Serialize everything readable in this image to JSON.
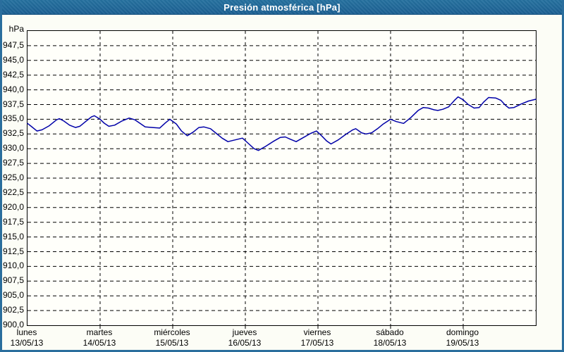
{
  "window": {
    "title": "Presión atmosférica [hPa]"
  },
  "colors": {
    "titlebar_bg": "#1F6699",
    "titlebar_text": "#FFFFFF",
    "window_border": "#2A6E9D",
    "content_bg": "#FCFDF6",
    "plot_bg": "#FFFFFA",
    "grid": "#000000",
    "line": "#0000A8"
  },
  "chart_data": {
    "type": "line",
    "title": "Presión atmosférica [hPa]",
    "ylabel": "hPa",
    "unit": "hPa",
    "ylim": [
      900,
      950
    ],
    "ytick_step": 2.5,
    "ytick_labels": [
      "947,5",
      "945,0",
      "942,5",
      "940,0",
      "937,5",
      "935,0",
      "932,5",
      "930,0",
      "927,5",
      "925,0",
      "922,5",
      "920,0",
      "917,5",
      "915,0",
      "912,5",
      "910,0",
      "907,5",
      "905,0",
      "902,5",
      "900,0"
    ],
    "xlim_days": [
      0,
      7
    ],
    "grid": "dashed",
    "legend": "none",
    "categories": [
      {
        "day": "lunes",
        "date": "13/05/13"
      },
      {
        "day": "martes",
        "date": "14/05/13"
      },
      {
        "day": "miércoles",
        "date": "15/05/13"
      },
      {
        "day": "jueves",
        "date": "16/05/13"
      },
      {
        "day": "viernes",
        "date": "17/05/13"
      },
      {
        "day": "sábado",
        "date": "18/05/13"
      },
      {
        "day": "domingo",
        "date": "19/05/13"
      }
    ],
    "series": [
      {
        "name": "Presión atmosférica [hPa]",
        "x_unit": "days_from_2013-05-13",
        "points": [
          [
            0.0,
            934.3
          ],
          [
            0.05,
            933.8
          ],
          [
            0.13,
            933.0
          ],
          [
            0.2,
            933.2
          ],
          [
            0.3,
            933.9
          ],
          [
            0.4,
            934.9
          ],
          [
            0.44,
            935.1
          ],
          [
            0.5,
            934.7
          ],
          [
            0.58,
            934.0
          ],
          [
            0.66,
            933.6
          ],
          [
            0.72,
            933.8
          ],
          [
            0.8,
            934.6
          ],
          [
            0.88,
            935.4
          ],
          [
            0.92,
            935.6
          ],
          [
            1.0,
            935.0
          ],
          [
            1.06,
            934.3
          ],
          [
            1.12,
            933.8
          ],
          [
            1.2,
            934.0
          ],
          [
            1.3,
            934.7
          ],
          [
            1.4,
            935.2
          ],
          [
            1.48,
            934.9
          ],
          [
            1.55,
            934.3
          ],
          [
            1.62,
            933.7
          ],
          [
            1.72,
            933.6
          ],
          [
            1.82,
            933.5
          ],
          [
            1.9,
            934.4
          ],
          [
            1.96,
            935.0
          ],
          [
            2.05,
            934.2
          ],
          [
            2.12,
            933.0
          ],
          [
            2.2,
            932.2
          ],
          [
            2.28,
            932.8
          ],
          [
            2.36,
            933.6
          ],
          [
            2.43,
            933.7
          ],
          [
            2.52,
            933.4
          ],
          [
            2.6,
            932.6
          ],
          [
            2.68,
            931.8
          ],
          [
            2.76,
            931.2
          ],
          [
            2.86,
            931.5
          ],
          [
            2.96,
            931.8
          ],
          [
            3.05,
            930.8
          ],
          [
            3.12,
            930.0
          ],
          [
            3.18,
            929.7
          ],
          [
            3.28,
            930.4
          ],
          [
            3.38,
            931.2
          ],
          [
            3.48,
            931.9
          ],
          [
            3.55,
            932.0
          ],
          [
            3.62,
            931.6
          ],
          [
            3.7,
            931.2
          ],
          [
            3.8,
            931.9
          ],
          [
            3.9,
            932.6
          ],
          [
            3.98,
            933.0
          ],
          [
            4.05,
            932.2
          ],
          [
            4.12,
            931.3
          ],
          [
            4.18,
            930.8
          ],
          [
            4.28,
            931.5
          ],
          [
            4.38,
            932.4
          ],
          [
            4.48,
            933.2
          ],
          [
            4.52,
            933.4
          ],
          [
            4.6,
            932.7
          ],
          [
            4.66,
            932.5
          ],
          [
            4.74,
            932.7
          ],
          [
            4.82,
            933.4
          ],
          [
            4.9,
            934.2
          ],
          [
            5.0,
            935.0
          ],
          [
            5.08,
            934.6
          ],
          [
            5.18,
            934.3
          ],
          [
            5.28,
            935.3
          ],
          [
            5.38,
            936.5
          ],
          [
            5.45,
            937.0
          ],
          [
            5.52,
            936.9
          ],
          [
            5.6,
            936.6
          ],
          [
            5.65,
            936.5
          ],
          [
            5.72,
            936.7
          ],
          [
            5.8,
            937.1
          ],
          [
            5.88,
            938.2
          ],
          [
            5.93,
            938.8
          ],
          [
            6.0,
            938.3
          ],
          [
            6.07,
            937.5
          ],
          [
            6.15,
            936.9
          ],
          [
            6.22,
            937.0
          ],
          [
            6.28,
            937.9
          ],
          [
            6.35,
            938.7
          ],
          [
            6.45,
            938.6
          ],
          [
            6.52,
            938.2
          ],
          [
            6.58,
            937.4
          ],
          [
            6.63,
            936.9
          ],
          [
            6.7,
            937.0
          ],
          [
            6.8,
            937.6
          ],
          [
            6.9,
            938.1
          ],
          [
            7.0,
            938.4
          ]
        ]
      }
    ]
  }
}
